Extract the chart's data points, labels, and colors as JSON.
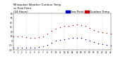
{
  "title": "Milwaukee Weather Outdoor Temp",
  "title2": "vs Dew Point",
  "title3": "(24 Hours)",
  "background_color": "#ffffff",
  "xlim": [
    0,
    23
  ],
  "ylim": [
    -20,
    60
  ],
  "hours": [
    0,
    1,
    2,
    3,
    4,
    5,
    6,
    7,
    8,
    9,
    10,
    11,
    12,
    13,
    14,
    15,
    16,
    17,
    18,
    19,
    20,
    21,
    22,
    23
  ],
  "temp": [
    10,
    10,
    9,
    8,
    7,
    7,
    8,
    10,
    16,
    22,
    27,
    30,
    32,
    33,
    34,
    35,
    34,
    32,
    28,
    24,
    21,
    19,
    17,
    16
  ],
  "dewpoint": [
    -15,
    -15,
    -15,
    -15,
    -15,
    -15,
    -14,
    -12,
    -8,
    -4,
    0,
    2,
    4,
    5,
    6,
    7,
    6,
    4,
    1,
    -2,
    -5,
    -7,
    -9,
    -10
  ],
  "temp_color": "#cc0000",
  "dew_color": "#0000cc",
  "grid_color": "#bbbbbb",
  "vgrid_positions": [
    3,
    6,
    9,
    12,
    15,
    18,
    21
  ],
  "ytick_positions": [
    -20,
    -10,
    0,
    10,
    20,
    30,
    40,
    50,
    60
  ],
  "ytick_labels": [
    "-20",
    "-10",
    "0",
    "10",
    "20",
    "30",
    "40",
    "50",
    "60"
  ],
  "xtick_positions": [
    0,
    1,
    2,
    3,
    4,
    5,
    6,
    7,
    8,
    9,
    10,
    11,
    12,
    13,
    14,
    15,
    16,
    17,
    18,
    19,
    20,
    21,
    22,
    23
  ],
  "xtick_labels": [
    "0",
    "1",
    "2",
    "3",
    "4",
    "5",
    "6",
    "7",
    "8",
    "9",
    "10",
    "11",
    "12",
    "13",
    "14",
    "15",
    "16",
    "17",
    "18",
    "19",
    "20",
    "21",
    "22",
    "23"
  ],
  "legend_temp_label": "Outdoor Temp",
  "legend_dew_label": "Dew Point",
  "marker_size": 1.0,
  "title_fontsize": 2.8,
  "tick_fontsize": 2.0
}
